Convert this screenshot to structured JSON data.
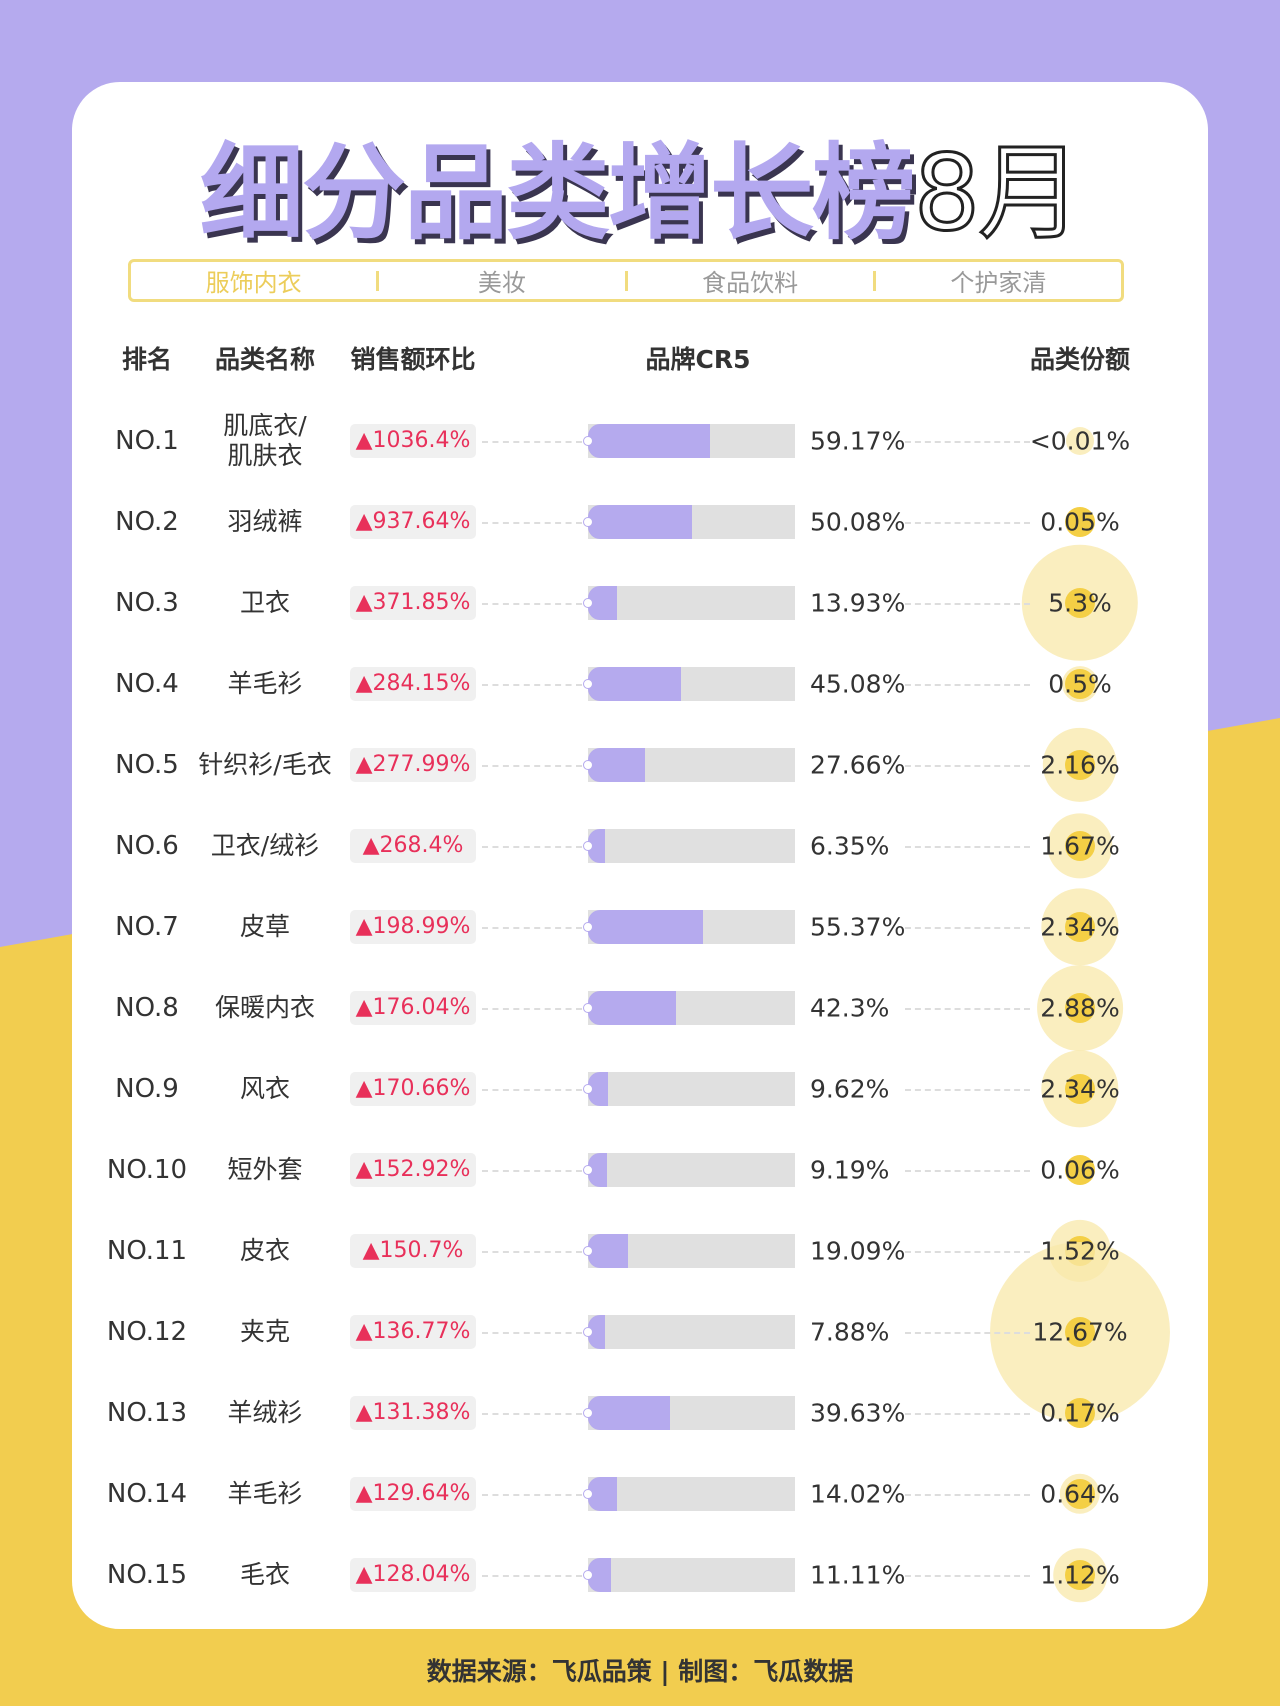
{
  "title": "细分品类增长榜",
  "month": "8月",
  "tabs": [
    {
      "label": "服饰内衣",
      "active": true
    },
    {
      "label": "美妆"
    },
    {
      "label": "食品饮料"
    },
    {
      "label": "个护家清"
    }
  ],
  "headers": {
    "rank": "排名",
    "name": "品类名称",
    "growth": "销售额环比",
    "cr5": "品牌CR5",
    "share": "品类份额"
  },
  "colors": {
    "purple": "#b5aaee",
    "yellow": "#f2cd4f",
    "growth_red": "#e8305a"
  },
  "chart_data": {
    "type": "table",
    "rows": [
      {
        "rank": "NO.1",
        "name": "肌底衣/\n肌肤衣",
        "growth": "▲1036.4%",
        "cr5": 59.17,
        "cr5_label": "59.17%",
        "share": 0.005,
        "share_label": "<0.01%"
      },
      {
        "rank": "NO.2",
        "name": "羽绒裤",
        "growth": "▲937.64%",
        "cr5": 50.08,
        "cr5_label": "50.08%",
        "share": 0.05,
        "share_label": "0.05%"
      },
      {
        "rank": "NO.3",
        "name": "卫衣",
        "growth": "▲371.85%",
        "cr5": 13.93,
        "cr5_label": "13.93%",
        "share": 5.3,
        "share_label": "5.3%"
      },
      {
        "rank": "NO.4",
        "name": "羊毛衫",
        "growth": "▲284.15%",
        "cr5": 45.08,
        "cr5_label": "45.08%",
        "share": 0.5,
        "share_label": "0.5%"
      },
      {
        "rank": "NO.5",
        "name": "针织衫/毛衣",
        "growth": "▲277.99%",
        "cr5": 27.66,
        "cr5_label": "27.66%",
        "share": 2.16,
        "share_label": "2.16%"
      },
      {
        "rank": "NO.6",
        "name": "卫衣/绒衫",
        "growth": "▲268.4%",
        "cr5": 6.35,
        "cr5_label": "6.35%",
        "share": 1.67,
        "share_label": "1.67%"
      },
      {
        "rank": "NO.7",
        "name": "皮草",
        "growth": "▲198.99%",
        "cr5": 55.37,
        "cr5_label": "55.37%",
        "share": 2.34,
        "share_label": "2.34%"
      },
      {
        "rank": "NO.8",
        "name": "保暖内衣",
        "growth": "▲176.04%",
        "cr5": 42.3,
        "cr5_label": "42.3%",
        "share": 2.88,
        "share_label": "2.88%"
      },
      {
        "rank": "NO.9",
        "name": "风衣",
        "growth": "▲170.66%",
        "cr5": 9.62,
        "cr5_label": "9.62%",
        "share": 2.34,
        "share_label": "2.34%"
      },
      {
        "rank": "NO.10",
        "name": "短外套",
        "growth": "▲152.92%",
        "cr5": 9.19,
        "cr5_label": "9.19%",
        "share": 0.06,
        "share_label": "0.06%"
      },
      {
        "rank": "NO.11",
        "name": "皮衣",
        "growth": "▲150.7%",
        "cr5": 19.09,
        "cr5_label": "19.09%",
        "share": 1.52,
        "share_label": "1.52%"
      },
      {
        "rank": "NO.12",
        "name": "夹克",
        "growth": "▲136.77%",
        "cr5": 7.88,
        "cr5_label": "7.88%",
        "share": 12.67,
        "share_label": "12.67%"
      },
      {
        "rank": "NO.13",
        "name": "羊绒衫",
        "growth": "▲131.38%",
        "cr5": 39.63,
        "cr5_label": "39.63%",
        "share": 0.17,
        "share_label": "0.17%"
      },
      {
        "rank": "NO.14",
        "name": "羊毛衫",
        "growth": "▲129.64%",
        "cr5": 14.02,
        "cr5_label": "14.02%",
        "share": 0.64,
        "share_label": "0.64%"
      },
      {
        "rank": "NO.15",
        "name": "毛衣",
        "growth": "▲128.04%",
        "cr5": 11.11,
        "cr5_label": "11.11%",
        "share": 1.12,
        "share_label": "1.12%"
      }
    ]
  },
  "footer": "数据来源：飞瓜品策 | 制图：飞瓜数据"
}
